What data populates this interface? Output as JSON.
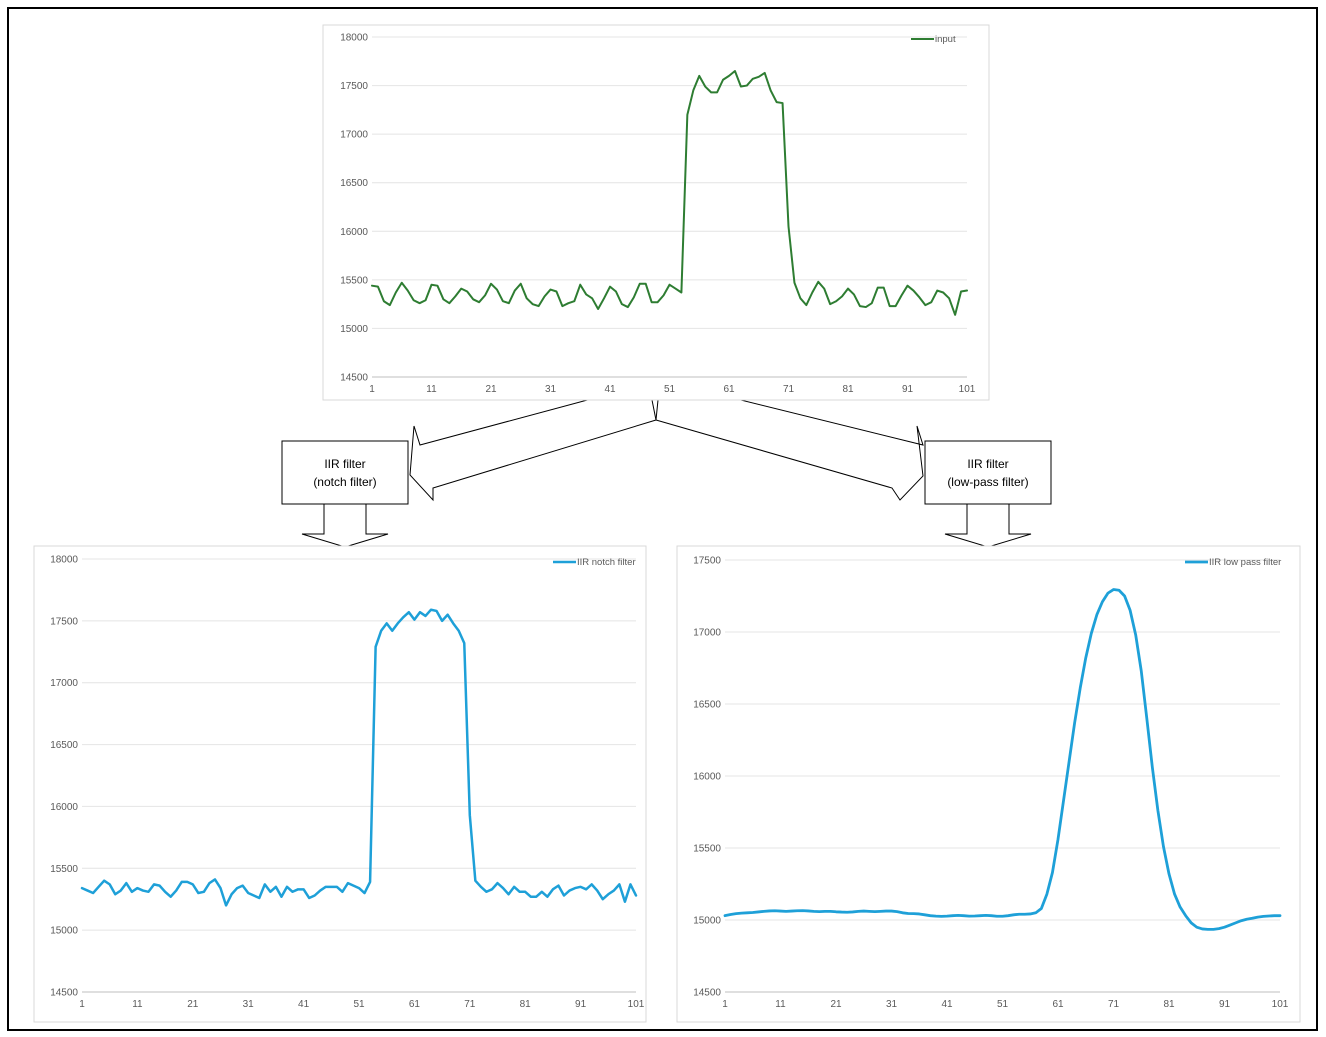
{
  "filters": {
    "notch": {
      "line1": "IIR filter",
      "line2": "(notch filter)"
    },
    "lowpass": {
      "line1": "IIR filter",
      "line2": "(low-pass filter)"
    }
  },
  "chart_data": [
    {
      "id": "input",
      "type": "line",
      "color": "#2E7D32",
      "legend_position": "top-right",
      "grid": true,
      "x_ticks": [
        "1",
        "11",
        "21",
        "31",
        "41",
        "51",
        "61",
        "71",
        "81",
        "91",
        "101"
      ],
      "y_ticks": [
        "14500",
        "15000",
        "15500",
        "16000",
        "16500",
        "17000",
        "17500",
        "18000"
      ],
      "ylim": [
        14500,
        18000
      ],
      "xlim": [
        1,
        101
      ],
      "series": [
        {
          "name": "input",
          "x_start": 1,
          "values": [
            15440,
            15430,
            15280,
            15240,
            15370,
            15470,
            15390,
            15290,
            15260,
            15290,
            15450,
            15440,
            15300,
            15260,
            15330,
            15410,
            15380,
            15300,
            15270,
            15340,
            15460,
            15400,
            15280,
            15260,
            15390,
            15460,
            15310,
            15250,
            15230,
            15330,
            15400,
            15380,
            15230,
            15260,
            15280,
            15450,
            15350,
            15310,
            15200,
            15310,
            15430,
            15380,
            15250,
            15220,
            15320,
            15460,
            15460,
            15270,
            15270,
            15340,
            15450,
            15410,
            15370,
            17200,
            17450,
            17600,
            17490,
            17430,
            17430,
            17560,
            17600,
            17650,
            17490,
            17500,
            17570,
            17590,
            17630,
            17450,
            17330,
            17320,
            16050,
            15470,
            15310,
            15240,
            15370,
            15480,
            15410,
            15250,
            15280,
            15330,
            15410,
            15350,
            15230,
            15220,
            15260,
            15420,
            15420,
            15230,
            15230,
            15340,
            15440,
            15390,
            15320,
            15240,
            15270,
            15390,
            15370,
            15310,
            15140,
            15380,
            15390
          ]
        }
      ]
    },
    {
      "id": "notch",
      "type": "line",
      "color": "#1EA0D8",
      "legend_position": "top-right",
      "grid": true,
      "x_ticks": [
        "1",
        "11",
        "21",
        "31",
        "41",
        "51",
        "61",
        "71",
        "81",
        "91",
        "101"
      ],
      "y_ticks": [
        "14500",
        "15000",
        "15500",
        "16000",
        "16500",
        "17000",
        "17500",
        "18000"
      ],
      "ylim": [
        14500,
        18000
      ],
      "xlim": [
        1,
        101
      ],
      "series": [
        {
          "name": "IIR notch filter",
          "x_start": 1,
          "values": [
            15340,
            15320,
            15300,
            15350,
            15400,
            15370,
            15290,
            15320,
            15380,
            15310,
            15340,
            15320,
            15310,
            15370,
            15360,
            15310,
            15270,
            15320,
            15390,
            15390,
            15370,
            15300,
            15310,
            15380,
            15410,
            15340,
            15200,
            15290,
            15340,
            15360,
            15300,
            15280,
            15260,
            15370,
            15310,
            15350,
            15270,
            15350,
            15310,
            15330,
            15330,
            15260,
            15280,
            15320,
            15350,
            15350,
            15350,
            15310,
            15380,
            15360,
            15340,
            15300,
            15390,
            17290,
            17420,
            17480,
            17420,
            17480,
            17530,
            17570,
            17510,
            17570,
            17540,
            17590,
            17580,
            17500,
            17550,
            17480,
            17420,
            17320,
            15930,
            15400,
            15350,
            15310,
            15330,
            15380,
            15340,
            15290,
            15350,
            15310,
            15310,
            15270,
            15270,
            15310,
            15270,
            15330,
            15360,
            15280,
            15320,
            15340,
            15350,
            15330,
            15370,
            15320,
            15250,
            15290,
            15320,
            15370,
            15230,
            15370,
            15280
          ]
        }
      ]
    },
    {
      "id": "lowpass",
      "type": "line",
      "color": "#1EA0D8",
      "legend_position": "top-right",
      "grid": true,
      "x_ticks": [
        "1",
        "11",
        "21",
        "31",
        "41",
        "51",
        "61",
        "71",
        "81",
        "91",
        "101"
      ],
      "y_ticks": [
        "14500",
        "15000",
        "15500",
        "16000",
        "16500",
        "17000",
        "17500"
      ],
      "ylim": [
        14500,
        17500
      ],
      "xlim": [
        1,
        101
      ],
      "series": [
        {
          "name": "IIR low pass filter",
          "x_start": 1,
          "values": [
            15030,
            15038,
            15044,
            15048,
            15050,
            15052,
            15056,
            15060,
            15063,
            15064,
            15062,
            15060,
            15062,
            15064,
            15065,
            15063,
            15060,
            15058,
            15060,
            15060,
            15057,
            15055,
            15054,
            15056,
            15060,
            15062,
            15060,
            15058,
            15060,
            15062,
            15062,
            15058,
            15050,
            15045,
            15044,
            15042,
            15036,
            15030,
            15027,
            15025,
            15027,
            15030,
            15032,
            15030,
            15027,
            15028,
            15030,
            15032,
            15030,
            15026,
            15026,
            15030,
            15036,
            15040,
            15040,
            15042,
            15050,
            15080,
            15180,
            15330,
            15560,
            15830,
            16100,
            16370,
            16610,
            16820,
            16990,
            17120,
            17210,
            17270,
            17295,
            17290,
            17250,
            17150,
            16980,
            16730,
            16400,
            16060,
            15760,
            15510,
            15320,
            15180,
            15090,
            15030,
            14980,
            14950,
            14938,
            14935,
            14935,
            14940,
            14950,
            14965,
            14980,
            14995,
            15005,
            15012,
            15020,
            15025,
            15028,
            15030,
            15030
          ]
        }
      ]
    }
  ]
}
